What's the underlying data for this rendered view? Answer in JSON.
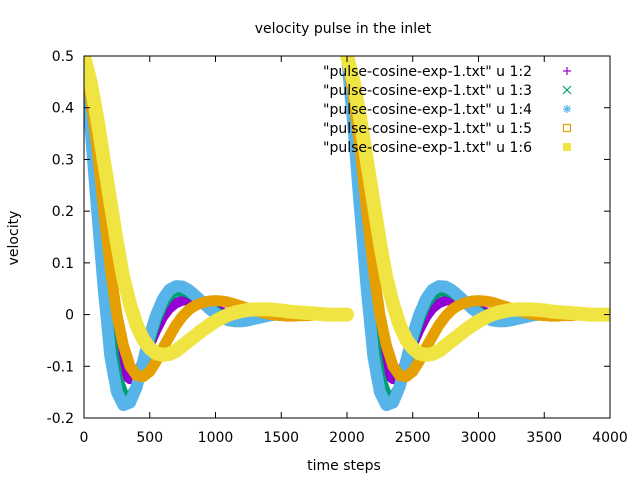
{
  "chart_data": {
    "type": "scatter",
    "title": "velocity pulse in the inlet",
    "xlabel": "time steps",
    "ylabel": "velocity",
    "xlim": [
      0,
      4000
    ],
    "ylim": [
      -0.2,
      0.5
    ],
    "xticks": [
      0,
      500,
      1000,
      1500,
      2000,
      2500,
      3000,
      3500,
      4000
    ],
    "yticks": [
      -0.2,
      -0.1,
      0,
      0.1,
      0.2,
      0.3,
      0.4,
      0.5
    ],
    "grid": false,
    "legend_position": "top-right",
    "period": 2000,
    "series": [
      {
        "name": "\"pulse-cosine-exp-1.txt\" u 1:2",
        "marker": "plus",
        "color": "#9400d3",
        "x": [
          0,
          50,
          100,
          150,
          200,
          250,
          300,
          350,
          400,
          450,
          500,
          550,
          600,
          650,
          700,
          750,
          800,
          850,
          900,
          950,
          1000,
          1050,
          1100,
          1150,
          1200,
          1250,
          1300,
          1350,
          1400,
          1450,
          1500,
          1550,
          1600,
          1650,
          1700,
          1750,
          1800,
          1850,
          1900,
          1950,
          2000
        ],
        "y": [
          0.5,
          0.4,
          0.27,
          0.13,
          0.0,
          -0.08,
          -0.115,
          -0.125,
          -0.115,
          -0.09,
          -0.058,
          -0.03,
          -0.005,
          0.012,
          0.022,
          0.027,
          0.028,
          0.026,
          0.022,
          0.016,
          0.01,
          0.005,
          0.001,
          -0.002,
          -0.003,
          -0.003,
          -0.003,
          -0.002,
          -0.001,
          0.0,
          0.001,
          0.001,
          0.001,
          0.001,
          0.0,
          0.0,
          0.0,
          0.0,
          0.0,
          0.0,
          0.0
        ]
      },
      {
        "name": "\"pulse-cosine-exp-1.txt\" u 1:3",
        "marker": "cross",
        "color": "#009e73",
        "x": [
          0,
          50,
          100,
          150,
          200,
          250,
          300,
          350,
          400,
          450,
          500,
          550,
          600,
          650,
          700,
          750,
          800,
          850,
          900,
          950,
          1000,
          1050,
          1100,
          1150,
          1200,
          1250,
          1300,
          1350,
          1400,
          1450,
          1500,
          1550,
          1600,
          1650,
          1700,
          1750,
          1800,
          1850,
          1900,
          1950,
          2000
        ],
        "y": [
          0.5,
          0.38,
          0.24,
          0.09,
          -0.04,
          -0.12,
          -0.155,
          -0.16,
          -0.14,
          -0.1,
          -0.05,
          -0.01,
          0.02,
          0.037,
          0.045,
          0.046,
          0.042,
          0.034,
          0.025,
          0.015,
          0.006,
          -0.002,
          -0.007,
          -0.01,
          -0.011,
          -0.01,
          -0.008,
          -0.006,
          -0.003,
          -0.001,
          0.001,
          0.002,
          0.003,
          0.003,
          0.003,
          0.002,
          0.001,
          0.001,
          0.0,
          0.0,
          0.0
        ]
      },
      {
        "name": "\"pulse-cosine-exp-1.txt\" u 1:4",
        "marker": "star",
        "color": "#56b4e9",
        "x": [
          0,
          50,
          100,
          150,
          200,
          250,
          300,
          350,
          400,
          450,
          500,
          550,
          600,
          650,
          700,
          750,
          800,
          850,
          900,
          950,
          1000,
          1050,
          1100,
          1150,
          1200,
          1250,
          1300,
          1350,
          1400,
          1450,
          1500,
          1550,
          1600,
          1650,
          1700,
          1750,
          1800,
          1850,
          1900,
          1950,
          2000
        ],
        "y": [
          0.5,
          0.36,
          0.2,
          0.05,
          -0.08,
          -0.15,
          -0.175,
          -0.17,
          -0.14,
          -0.09,
          -0.04,
          0.0,
          0.03,
          0.048,
          0.055,
          0.054,
          0.047,
          0.036,
          0.024,
          0.012,
          0.002,
          -0.006,
          -0.011,
          -0.013,
          -0.013,
          -0.011,
          -0.008,
          -0.005,
          -0.002,
          0.0,
          0.002,
          0.003,
          0.003,
          0.003,
          0.002,
          0.002,
          0.001,
          0.0,
          0.0,
          0.0,
          0.0
        ]
      },
      {
        "name": "\"pulse-cosine-exp-1.txt\" u 1:5",
        "marker": "square",
        "color": "#e69f00",
        "x": [
          0,
          50,
          100,
          150,
          200,
          250,
          300,
          350,
          400,
          450,
          500,
          550,
          600,
          650,
          700,
          750,
          800,
          850,
          900,
          950,
          1000,
          1050,
          1100,
          1150,
          1200,
          1250,
          1300,
          1350,
          1400,
          1450,
          1500,
          1550,
          1600,
          1650,
          1700,
          1750,
          1800,
          1850,
          1900,
          1950,
          2000
        ],
        "y": [
          0.5,
          0.42,
          0.32,
          0.2,
          0.09,
          0.0,
          -0.06,
          -0.1,
          -0.118,
          -0.12,
          -0.11,
          -0.09,
          -0.065,
          -0.042,
          -0.02,
          -0.003,
          0.01,
          0.018,
          0.023,
          0.026,
          0.027,
          0.026,
          0.024,
          0.02,
          0.016,
          0.012,
          0.008,
          0.004,
          0.001,
          -0.001,
          -0.002,
          -0.003,
          -0.003,
          -0.002,
          -0.002,
          -0.001,
          0.0,
          0.0,
          0.0,
          0.0,
          0.0
        ]
      },
      {
        "name": "\"pulse-cosine-exp-1.txt\" u 1:6",
        "marker": "filled-square",
        "color": "#f0e442",
        "x": [
          0,
          50,
          100,
          150,
          200,
          250,
          300,
          350,
          400,
          450,
          500,
          550,
          600,
          650,
          700,
          750,
          800,
          850,
          900,
          950,
          1000,
          1050,
          1100,
          1150,
          1200,
          1250,
          1300,
          1350,
          1400,
          1450,
          1500,
          1550,
          1600,
          1650,
          1700,
          1750,
          1800,
          1850,
          1900,
          1950,
          2000
        ],
        "y": [
          0.5,
          0.45,
          0.38,
          0.3,
          0.22,
          0.14,
          0.07,
          0.02,
          -0.02,
          -0.048,
          -0.065,
          -0.075,
          -0.078,
          -0.076,
          -0.07,
          -0.06,
          -0.05,
          -0.04,
          -0.03,
          -0.021,
          -0.013,
          -0.006,
          0.0,
          0.004,
          0.007,
          0.009,
          0.01,
          0.01,
          0.01,
          0.009,
          0.008,
          0.006,
          0.005,
          0.004,
          0.003,
          0.002,
          0.001,
          0.0,
          0.0,
          0.0,
          0.0
        ]
      }
    ]
  }
}
